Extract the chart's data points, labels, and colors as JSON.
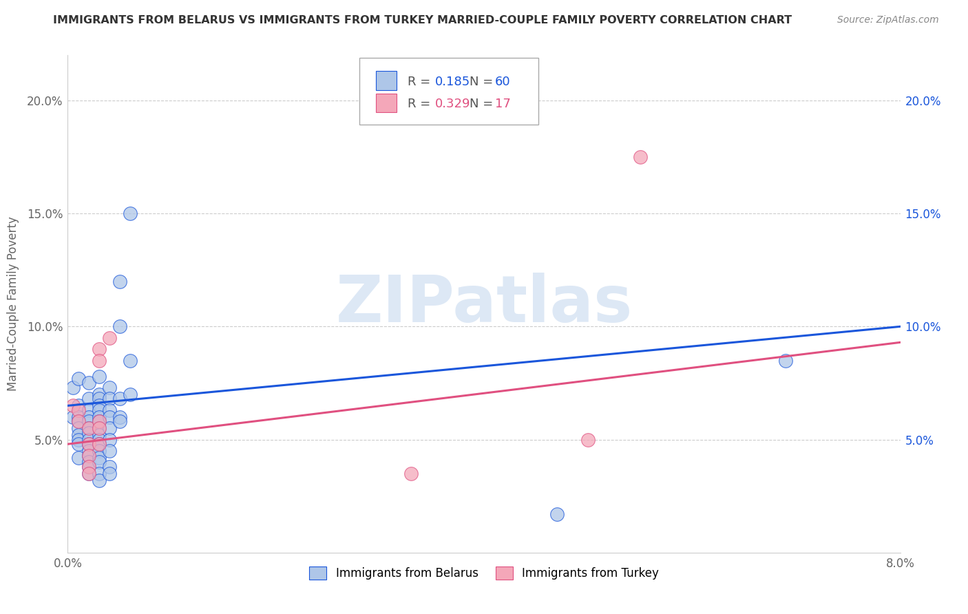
{
  "title": "IMMIGRANTS FROM BELARUS VS IMMIGRANTS FROM TURKEY MARRIED-COUPLE FAMILY POVERTY CORRELATION CHART",
  "source": "Source: ZipAtlas.com",
  "ylabel": "Married-Couple Family Poverty",
  "xlim": [
    0.0,
    0.08
  ],
  "ylim": [
    0.0,
    0.22
  ],
  "ytick_positions": [
    0.05,
    0.1,
    0.15,
    0.2
  ],
  "ytick_labels": [
    "5.0%",
    "10.0%",
    "15.0%",
    "20.0%"
  ],
  "belarus_color": "#aec6e8",
  "turkey_color": "#f4a7b9",
  "belarus_line_color": "#1a56db",
  "turkey_line_color": "#e05080",
  "watermark_text": "ZIPatlas",
  "watermark_color": "#dde8f5",
  "R_belarus": "0.185",
  "N_belarus": "60",
  "R_turkey": "0.329",
  "N_turkey": "17",
  "legend_label_belarus": "Immigrants from Belarus",
  "legend_label_turkey": "Immigrants from Turkey",
  "belarus_scatter": [
    [
      0.0005,
      0.073
    ],
    [
      0.0005,
      0.06
    ],
    [
      0.001,
      0.077
    ],
    [
      0.001,
      0.065
    ],
    [
      0.001,
      0.06
    ],
    [
      0.001,
      0.058
    ],
    [
      0.001,
      0.055
    ],
    [
      0.001,
      0.052
    ],
    [
      0.001,
      0.05
    ],
    [
      0.001,
      0.048
    ],
    [
      0.001,
      0.042
    ],
    [
      0.002,
      0.075
    ],
    [
      0.002,
      0.068
    ],
    [
      0.002,
      0.063
    ],
    [
      0.002,
      0.06
    ],
    [
      0.002,
      0.058
    ],
    [
      0.002,
      0.055
    ],
    [
      0.002,
      0.053
    ],
    [
      0.002,
      0.05
    ],
    [
      0.002,
      0.048
    ],
    [
      0.002,
      0.045
    ],
    [
      0.002,
      0.043
    ],
    [
      0.002,
      0.04
    ],
    [
      0.002,
      0.038
    ],
    [
      0.002,
      0.035
    ],
    [
      0.003,
      0.078
    ],
    [
      0.003,
      0.07
    ],
    [
      0.003,
      0.068
    ],
    [
      0.003,
      0.065
    ],
    [
      0.003,
      0.063
    ],
    [
      0.003,
      0.06
    ],
    [
      0.003,
      0.058
    ],
    [
      0.003,
      0.055
    ],
    [
      0.003,
      0.052
    ],
    [
      0.003,
      0.05
    ],
    [
      0.003,
      0.048
    ],
    [
      0.003,
      0.045
    ],
    [
      0.003,
      0.042
    ],
    [
      0.003,
      0.04
    ],
    [
      0.003,
      0.035
    ],
    [
      0.003,
      0.032
    ],
    [
      0.004,
      0.073
    ],
    [
      0.004,
      0.068
    ],
    [
      0.004,
      0.063
    ],
    [
      0.004,
      0.06
    ],
    [
      0.004,
      0.055
    ],
    [
      0.004,
      0.05
    ],
    [
      0.004,
      0.045
    ],
    [
      0.004,
      0.038
    ],
    [
      0.004,
      0.035
    ],
    [
      0.005,
      0.12
    ],
    [
      0.005,
      0.1
    ],
    [
      0.005,
      0.068
    ],
    [
      0.005,
      0.06
    ],
    [
      0.005,
      0.058
    ],
    [
      0.006,
      0.15
    ],
    [
      0.006,
      0.085
    ],
    [
      0.006,
      0.07
    ],
    [
      0.069,
      0.085
    ],
    [
      0.047,
      0.017
    ]
  ],
  "turkey_scatter": [
    [
      0.0005,
      0.065
    ],
    [
      0.001,
      0.063
    ],
    [
      0.001,
      0.058
    ],
    [
      0.002,
      0.055
    ],
    [
      0.002,
      0.048
    ],
    [
      0.002,
      0.043
    ],
    [
      0.002,
      0.038
    ],
    [
      0.002,
      0.035
    ],
    [
      0.003,
      0.09
    ],
    [
      0.003,
      0.085
    ],
    [
      0.003,
      0.058
    ],
    [
      0.003,
      0.055
    ],
    [
      0.003,
      0.048
    ],
    [
      0.004,
      0.095
    ],
    [
      0.033,
      0.035
    ],
    [
      0.05,
      0.05
    ],
    [
      0.055,
      0.175
    ]
  ],
  "belarus_line": [
    [
      0.0,
      0.065
    ],
    [
      0.08,
      0.1
    ]
  ],
  "turkey_line": [
    [
      0.0,
      0.048
    ],
    [
      0.08,
      0.093
    ]
  ]
}
